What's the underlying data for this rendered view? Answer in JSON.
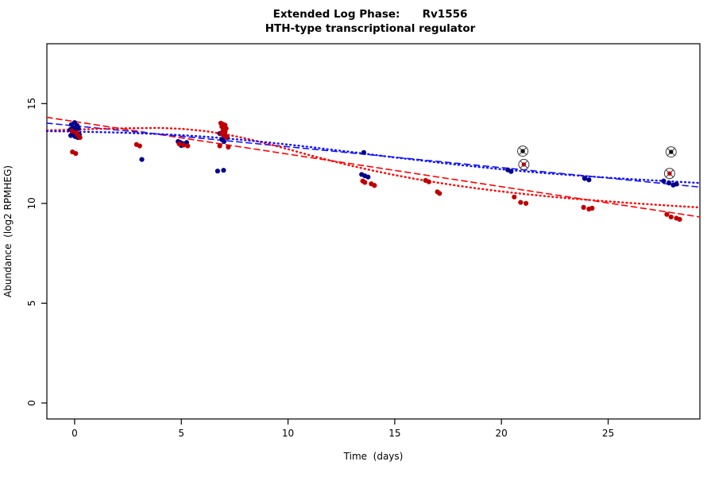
{
  "chart_data": {
    "type": "scatter",
    "title": "Extended Log Phase:      Rv1556",
    "subtitle": "HTH-type transcriptional regulator",
    "xlabel": "Time  (days)",
    "ylabel": "Abundance  (log2 RPMHEG)",
    "xlim": [
      -1.3,
      29.3
    ],
    "ylim": [
      -0.8,
      18.0
    ],
    "x_ticks": [
      0,
      5,
      10,
      15,
      20,
      25
    ],
    "y_ticks": [
      0,
      5,
      10,
      15
    ],
    "grid": false,
    "series": [
      {
        "name": "blue-points",
        "color": "#00008b",
        "marker": "dot",
        "points": [
          [
            -0.15,
            13.95
          ],
          [
            0.0,
            14.05
          ],
          [
            0.12,
            13.9
          ],
          [
            -0.05,
            13.8
          ],
          [
            0.18,
            13.75
          ],
          [
            -0.2,
            13.7
          ],
          [
            0.05,
            13.65
          ],
          [
            -0.1,
            13.55
          ],
          [
            0.1,
            13.5
          ],
          [
            0.22,
            13.45
          ],
          [
            -0.18,
            13.4
          ],
          [
            0.02,
            13.35
          ],
          [
            0.15,
            13.3
          ],
          [
            3.15,
            12.2
          ],
          [
            4.85,
            13.1
          ],
          [
            4.95,
            13.05
          ],
          [
            5.05,
            13.0
          ],
          [
            5.15,
            12.95
          ],
          [
            5.0,
            12.9
          ],
          [
            5.25,
            13.05
          ],
          [
            6.8,
            13.5
          ],
          [
            6.95,
            13.45
          ],
          [
            7.05,
            13.4
          ],
          [
            7.15,
            13.3
          ],
          [
            6.9,
            13.2
          ],
          [
            7.0,
            13.1
          ],
          [
            6.7,
            11.62
          ],
          [
            6.98,
            11.66
          ],
          [
            13.55,
            12.55
          ],
          [
            13.45,
            11.45
          ],
          [
            13.6,
            11.38
          ],
          [
            13.75,
            11.32
          ],
          [
            20.3,
            11.68
          ],
          [
            20.45,
            11.6
          ],
          [
            23.9,
            11.25
          ],
          [
            24.1,
            11.18
          ],
          [
            27.6,
            11.12
          ],
          [
            27.85,
            11.02
          ],
          [
            28.05,
            10.92
          ],
          [
            28.2,
            10.97
          ]
        ]
      },
      {
        "name": "red-points",
        "color": "#c00000",
        "marker": "dot",
        "points": [
          [
            -0.12,
            13.62
          ],
          [
            0.08,
            13.55
          ],
          [
            0.15,
            13.42
          ],
          [
            0.25,
            13.3
          ],
          [
            -0.1,
            12.58
          ],
          [
            0.05,
            12.5
          ],
          [
            2.9,
            12.95
          ],
          [
            3.05,
            12.88
          ],
          [
            4.9,
            12.98
          ],
          [
            5.1,
            12.92
          ],
          [
            5.3,
            12.88
          ],
          [
            6.85,
            14.02
          ],
          [
            6.95,
            13.97
          ],
          [
            7.05,
            13.92
          ],
          [
            6.9,
            13.85
          ],
          [
            7.0,
            13.8
          ],
          [
            7.1,
            13.75
          ],
          [
            6.95,
            13.65
          ],
          [
            7.05,
            13.58
          ],
          [
            6.88,
            13.48
          ],
          [
            7.0,
            13.4
          ],
          [
            7.12,
            13.32
          ],
          [
            6.8,
            12.88
          ],
          [
            7.2,
            12.82
          ],
          [
            13.5,
            11.12
          ],
          [
            13.6,
            11.05
          ],
          [
            13.9,
            10.98
          ],
          [
            14.05,
            10.9
          ],
          [
            16.45,
            11.15
          ],
          [
            16.6,
            11.08
          ],
          [
            17.0,
            10.58
          ],
          [
            17.1,
            10.5
          ],
          [
            20.6,
            10.32
          ],
          [
            20.9,
            10.05
          ],
          [
            21.15,
            10.0
          ],
          [
            23.85,
            9.8
          ],
          [
            24.1,
            9.72
          ],
          [
            24.25,
            9.76
          ],
          [
            27.75,
            9.45
          ],
          [
            27.95,
            9.32
          ],
          [
            28.2,
            9.26
          ],
          [
            28.35,
            9.2
          ]
        ]
      },
      {
        "name": "flagged-black-points",
        "color": "#111111",
        "marker": "circled",
        "points": [
          [
            21.0,
            12.62
          ],
          [
            27.95,
            12.58
          ]
        ]
      },
      {
        "name": "flagged-red-points",
        "color": "#c00000",
        "marker": "circled",
        "points": [
          [
            21.05,
            11.95
          ],
          [
            27.88,
            11.5
          ]
        ]
      }
    ],
    "lines": [
      {
        "name": "red-dashed-fit",
        "color": "#ff0000",
        "dash": "7 5",
        "width": 1.6,
        "points": [
          [
            -1.3,
            14.31
          ],
          [
            29.3,
            9.32
          ]
        ]
      },
      {
        "name": "blue-dashed-fit",
        "color": "#1414ff",
        "dash": "7 5",
        "width": 1.6,
        "points": [
          [
            -1.3,
            14.02
          ],
          [
            29.3,
            10.82
          ]
        ]
      },
      {
        "name": "red-dotted-fit",
        "color": "#ff0000",
        "dash": "1 4.2",
        "width": 2.4,
        "points": [
          [
            -1.3,
            13.66
          ],
          [
            0,
            13.7
          ],
          [
            2,
            13.76
          ],
          [
            4,
            13.78
          ],
          [
            5,
            13.74
          ],
          [
            6,
            13.64
          ],
          [
            7,
            13.48
          ],
          [
            8,
            13.26
          ],
          [
            9,
            13.0
          ],
          [
            10,
            12.72
          ],
          [
            11,
            12.42
          ],
          [
            12,
            12.14
          ],
          [
            13,
            11.88
          ],
          [
            14,
            11.64
          ],
          [
            15,
            11.42
          ],
          [
            16,
            11.22
          ],
          [
            17,
            11.04
          ],
          [
            18,
            10.88
          ],
          [
            19,
            10.73
          ],
          [
            20,
            10.6
          ],
          [
            21,
            10.48
          ],
          [
            22,
            10.37
          ],
          [
            23,
            10.27
          ],
          [
            24,
            10.18
          ],
          [
            25,
            10.1
          ],
          [
            26,
            10.02
          ],
          [
            27,
            9.95
          ],
          [
            28,
            9.88
          ],
          [
            29.3,
            9.8
          ]
        ]
      },
      {
        "name": "blue-dotted-fit",
        "color": "#1414ff",
        "dash": "1 4.2",
        "width": 2.4,
        "points": [
          [
            -1.3,
            13.62
          ],
          [
            0,
            13.6
          ],
          [
            2,
            13.55
          ],
          [
            4,
            13.47
          ],
          [
            5,
            13.42
          ],
          [
            6,
            13.35
          ],
          [
            7,
            13.27
          ],
          [
            8,
            13.17
          ],
          [
            9,
            13.06
          ],
          [
            10,
            12.95
          ],
          [
            11,
            12.83
          ],
          [
            12,
            12.7
          ],
          [
            13,
            12.57
          ],
          [
            14,
            12.44
          ],
          [
            15,
            12.3
          ],
          [
            16,
            12.18
          ],
          [
            17,
            12.05
          ],
          [
            18,
            11.93
          ],
          [
            19,
            11.82
          ],
          [
            20,
            11.71
          ],
          [
            21,
            11.61
          ],
          [
            22,
            11.52
          ],
          [
            23,
            11.44
          ],
          [
            24,
            11.36
          ],
          [
            25,
            11.29
          ],
          [
            26,
            11.22
          ],
          [
            27,
            11.16
          ],
          [
            28,
            11.1
          ],
          [
            29.3,
            11.02
          ]
        ]
      }
    ]
  }
}
